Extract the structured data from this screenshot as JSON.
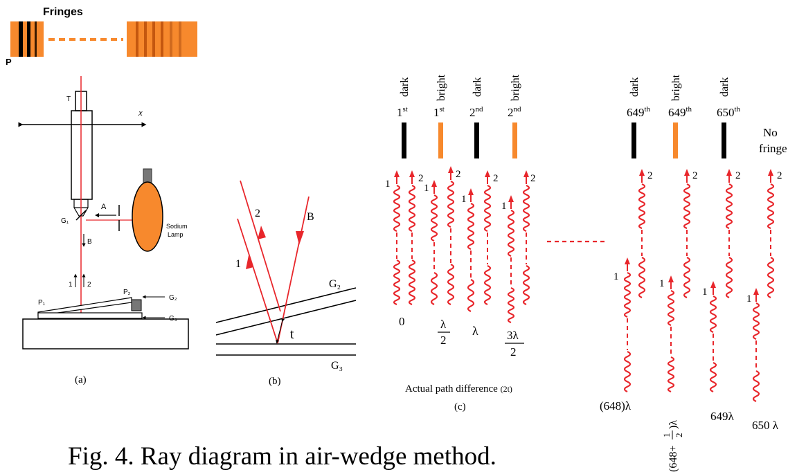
{
  "caption": "Fig. 4. Ray diagram in air-wedge method.",
  "panel_a": {
    "sublabel": "(a)",
    "fringes_label": "Fringes",
    "p_label": "P",
    "t_label": "T",
    "x_label": "x",
    "g1_label": "G₁",
    "a_label": "A",
    "b_label": "B",
    "ray_1_label": "1",
    "ray_2_label": "2",
    "p1_label": "P₁",
    "p2_label": "P₂",
    "g2_label": "G₂",
    "g3_label": "G₃",
    "lamp_line1": "Sodium",
    "lamp_line2": "Lamp",
    "colors": {
      "orange": "#f7892d",
      "red": "#e8262b",
      "black": "#000000"
    }
  },
  "panel_b": {
    "sublabel": "(b)",
    "ray_1": "1",
    "ray_2": "2",
    "ray_b": "B",
    "g2": "G₂",
    "g3": "G₃",
    "t": "t"
  },
  "panel_c": {
    "sublabel": "(c)",
    "axis_label": "Actual path difference",
    "axis_unit": "(2t)",
    "columns": [
      {
        "type": "dark",
        "ordinal": "1",
        "sup": "st",
        "diff": "0"
      },
      {
        "type": "bright",
        "ordinal": "1",
        "sup": "st",
        "diff_num": "λ",
        "diff_den": "2"
      },
      {
        "type": "dark",
        "ordinal": "2",
        "sup": "nd",
        "diff": "λ"
      },
      {
        "type": "bright",
        "ordinal": "2",
        "sup": "nd",
        "diff_num": "3λ",
        "diff_den": "2"
      },
      {
        "type": "dark",
        "ordinal": "649",
        "sup": "th",
        "diff": "(648)λ"
      },
      {
        "type": "bright",
        "ordinal": "649",
        "sup": "th",
        "diff_prefix": "(648+",
        "diff_num": "1",
        "diff_den": "2",
        "diff_suffix": ")λ"
      },
      {
        "type": "dark",
        "ordinal": "650",
        "sup": "th",
        "diff": "649λ"
      }
    ],
    "no_fringe_line1": "No",
    "no_fringe_line2": "fringe",
    "no_fringe_diff": "650 λ",
    "ray_1": "1",
    "ray_2": "2"
  }
}
